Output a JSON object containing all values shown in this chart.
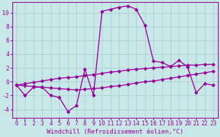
{
  "background_color": "#c8e8e8",
  "grid_color": "#b0d0d8",
  "line_color": "#990099",
  "marker": "D",
  "markersize": 2.5,
  "linewidth": 1.0,
  "xlabel": "Windchill (Refroidissement éolien,°C)",
  "xlabel_fontsize": 6.5,
  "tick_fontsize": 6.0,
  "xlim": [
    -0.5,
    23.5
  ],
  "ylim": [
    -5.2,
    11.5
  ],
  "yticks": [
    -4,
    -2,
    0,
    2,
    4,
    6,
    8,
    10
  ],
  "xticks": [
    0,
    1,
    2,
    3,
    4,
    5,
    6,
    7,
    8,
    9,
    10,
    11,
    12,
    13,
    14,
    15,
    16,
    17,
    18,
    19,
    20,
    21,
    22,
    23
  ],
  "series1_x": [
    0,
    1,
    2,
    3,
    4,
    5,
    6,
    7,
    8,
    9,
    10,
    11,
    12,
    13,
    14,
    15,
    16,
    17,
    18,
    19,
    20,
    21,
    22,
    23
  ],
  "series1_y": [
    -0.5,
    -2.0,
    -0.8,
    -0.8,
    -2.0,
    -2.3,
    -4.3,
    -3.5,
    1.8,
    -2.0,
    10.2,
    10.5,
    10.8,
    11.0,
    10.5,
    8.2,
    3.0,
    2.8,
    2.2,
    3.1,
    2.1,
    -1.6,
    -0.3,
    -0.5
  ],
  "series2_x": [
    0,
    1,
    2,
    3,
    4,
    5,
    6,
    7,
    8,
    9,
    10,
    11,
    12,
    13,
    14,
    15,
    16,
    17,
    18,
    19,
    20,
    21,
    22,
    23
  ],
  "series2_y": [
    -0.5,
    -0.3,
    -0.1,
    0.1,
    0.3,
    0.5,
    0.6,
    0.7,
    0.9,
    1.0,
    1.2,
    1.4,
    1.5,
    1.7,
    1.8,
    1.9,
    2.0,
    2.1,
    2.2,
    2.3,
    2.4,
    2.4,
    2.5,
    2.5
  ],
  "series3_x": [
    0,
    1,
    2,
    3,
    4,
    5,
    6,
    7,
    8,
    9,
    10,
    11,
    12,
    13,
    14,
    15,
    16,
    17,
    18,
    19,
    20,
    21,
    22,
    23
  ],
  "series3_y": [
    -0.5,
    -0.6,
    -0.7,
    -0.8,
    -0.9,
    -1.0,
    -1.1,
    -1.2,
    -1.1,
    -1.0,
    -0.9,
    -0.7,
    -0.6,
    -0.4,
    -0.2,
    0.0,
    0.1,
    0.3,
    0.5,
    0.7,
    0.9,
    1.1,
    1.3,
    1.5
  ]
}
